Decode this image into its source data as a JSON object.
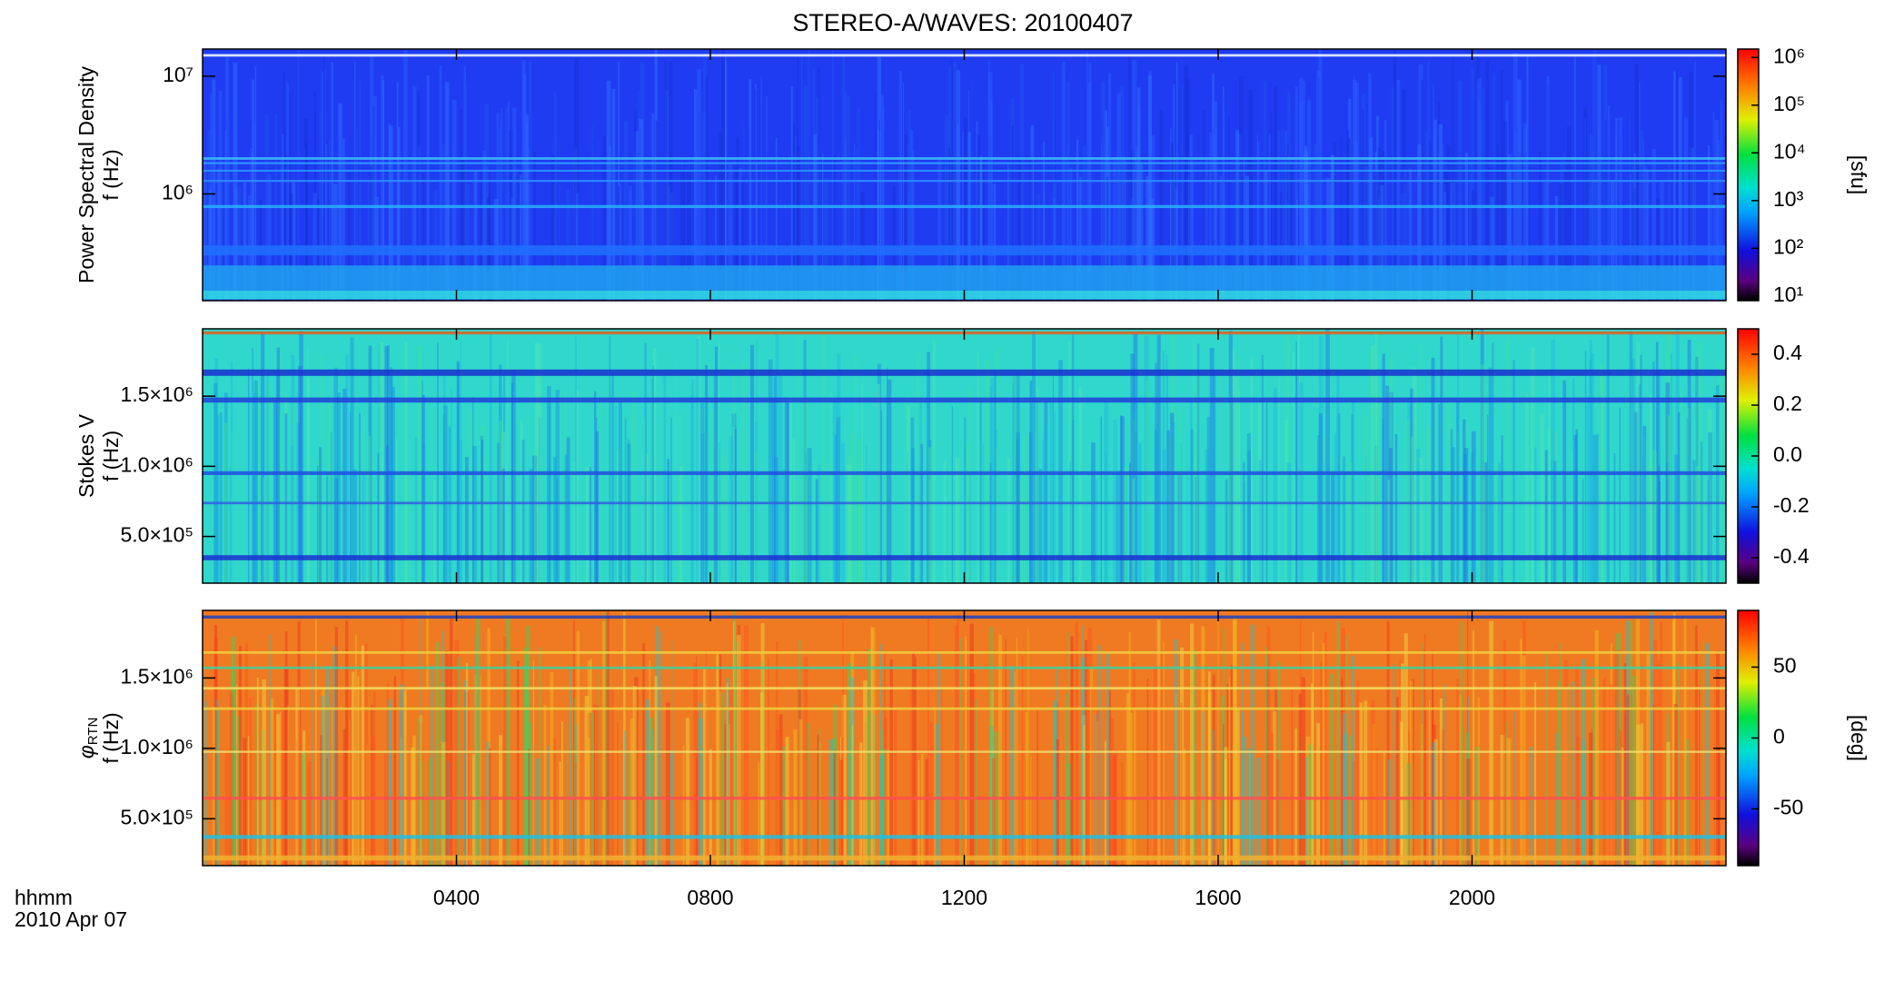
{
  "chart_data": {
    "type": "spectrogram",
    "title": "STEREO-A/WAVES: 20100407",
    "xlabel": "hhmm",
    "date": "2010 Apr 07",
    "xlim": [
      0,
      24
    ],
    "xticks": [
      {
        "value": 4,
        "label": "0400"
      },
      {
        "value": 8,
        "label": "0800"
      },
      {
        "value": 12,
        "label": "1200"
      },
      {
        "value": 16,
        "label": "1600"
      },
      {
        "value": 20,
        "label": "2000"
      }
    ],
    "colormap": "rainbow",
    "panels": [
      {
        "ylabel": {
          "name": "Power Spectral Density",
          "unit": "f (Hz)"
        },
        "yscale": "log",
        "ylim": [
          124000,
          17000000
        ],
        "yticks": [
          {
            "value": 1000000,
            "label": "10⁶"
          },
          {
            "value": 10000000,
            "label": "10⁷"
          }
        ],
        "colorbar": {
          "label": "[sfu]",
          "scale": "log",
          "lim": [
            8,
            1500000
          ],
          "ticks": [
            {
              "value": 10,
              "label": "10¹"
            },
            {
              "value": 100,
              "label": "10²"
            },
            {
              "value": 1000,
              "label": "10³"
            },
            {
              "value": 10000,
              "label": "10⁴"
            },
            {
              "value": 100000,
              "label": "10⁵"
            },
            {
              "value": 1000000,
              "label": "10⁶"
            }
          ]
        }
      },
      {
        "ylabel": {
          "name": "Stokes V",
          "unit": "f (Hz)"
        },
        "yscale": "linear",
        "ylim": [
          167000,
          1980000
        ],
        "yticks": [
          {
            "value": 500000,
            "label": "5.0×10⁵"
          },
          {
            "value": 1000000,
            "label": "1.0×10⁶"
          },
          {
            "value": 1500000,
            "label": "1.5×10⁶"
          }
        ],
        "colorbar": {
          "scale": "linear",
          "lim": [
            -0.5,
            0.5
          ],
          "ticks": [
            -0.4,
            -0.2,
            {
              "value": 0,
              "label": "0.0"
            },
            0.2,
            0.4
          ]
        }
      },
      {
        "ylabel": {
          "name": "φ",
          "subscript": "RTN",
          "unit": "f (Hz)"
        },
        "yscale": "linear",
        "ylim": [
          167000,
          1980000
        ],
        "yticks": [
          {
            "value": 500000,
            "label": "5.0×10⁵"
          },
          {
            "value": 1000000,
            "label": "1.0×10⁶"
          },
          {
            "value": 1500000,
            "label": "1.5×10⁶"
          }
        ],
        "colorbar": {
          "label": "[deg]",
          "scale": "linear",
          "lim": [
            -90,
            90
          ],
          "ticks": [
            -50,
            0,
            50
          ]
        }
      }
    ]
  }
}
